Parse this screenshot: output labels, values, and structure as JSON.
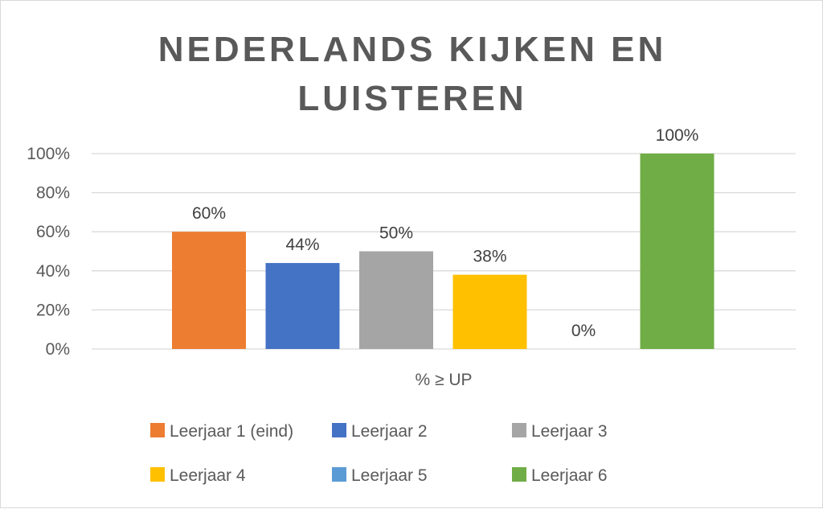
{
  "chart_data": {
    "type": "bar",
    "title_lines": [
      "NEDERLANDS KIJKEN EN",
      "LUISTEREN"
    ],
    "categories": [
      "% ≥ UP"
    ],
    "series": [
      {
        "name": "Leerjaar 1 (eind)",
        "values": [
          60
        ],
        "color": "#ED7D31",
        "label": "60%"
      },
      {
        "name": "Leerjaar 2",
        "values": [
          44
        ],
        "color": "#4472C4",
        "label": "44%"
      },
      {
        "name": "Leerjaar 3",
        "values": [
          50
        ],
        "color": "#A5A5A5",
        "label": "50%"
      },
      {
        "name": "Leerjaar 4",
        "values": [
          38
        ],
        "color": "#FFC000",
        "label": "38%"
      },
      {
        "name": "Leerjaar 5",
        "values": [
          0
        ],
        "color": "#5B9BD5",
        "label": "0%"
      },
      {
        "name": "Leerjaar 6",
        "values": [
          100
        ],
        "color": "#70AD47",
        "label": "100%"
      }
    ],
    "y_ticks": [
      "0%",
      "20%",
      "40%",
      "60%",
      "80%",
      "100%"
    ],
    "ylim": [
      0,
      100
    ],
    "grid": true,
    "legend_position": "bottom"
  }
}
